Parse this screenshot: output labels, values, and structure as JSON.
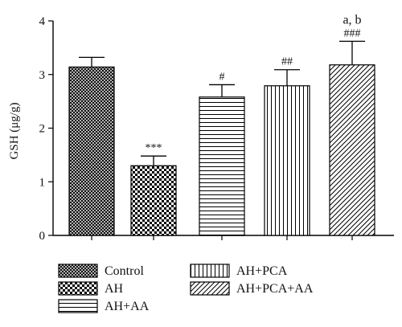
{
  "chart_data": {
    "type": "bar",
    "ylabel": "GSH (μg/g)",
    "ylim": [
      0,
      4
    ],
    "yticks": [
      0,
      1,
      2,
      3,
      4
    ],
    "categories": [
      "Control",
      "AH",
      "AH+AA",
      "AH+PCA",
      "AH+PCA+AA"
    ],
    "values": [
      3.14,
      1.3,
      2.58,
      2.79,
      3.18
    ],
    "errors": [
      0.18,
      0.18,
      0.23,
      0.3,
      0.44
    ],
    "annotations": [
      "",
      "***",
      "#",
      "##",
      "###"
    ],
    "annotations_top": [
      "",
      "",
      "",
      "",
      "a, b"
    ],
    "patterns": [
      "crosshatch",
      "checkerboard",
      "horizontal-lines",
      "vertical-lines",
      "diagonal-lines"
    ],
    "legend": {
      "placement": "bottom",
      "entries": [
        "Control",
        "AH",
        "AH+AA",
        "AH+PCA",
        "AH+PCA+AA"
      ]
    },
    "grid": false
  }
}
